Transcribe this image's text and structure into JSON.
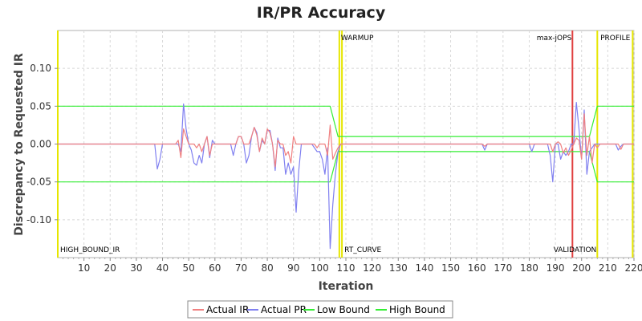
{
  "chart_data": {
    "type": "line",
    "title": "IR/PR Accuracy",
    "xlabel": "Iteration",
    "ylabel": "Discrepancy to Requested IR",
    "xlim": [
      0,
      220
    ],
    "ylim": [
      -0.15,
      0.15
    ],
    "x_ticks": [
      10,
      20,
      30,
      40,
      50,
      60,
      70,
      80,
      90,
      100,
      110,
      120,
      130,
      140,
      150,
      160,
      170,
      180,
      190,
      200,
      210,
      220
    ],
    "y_ticks": [
      0.1,
      0.05,
      0.0,
      -0.05,
      -0.1
    ],
    "y_tick_labels": [
      "0.10",
      "0.05",
      "0.00",
      "-0.05",
      "-0.10"
    ],
    "grid": true,
    "legend_position": "bottom",
    "markers": [
      {
        "label": "HIGH_BOUND_IR",
        "x": 0,
        "color": "#e6e600",
        "label_pos": "bottom"
      },
      {
        "label": "WARMUP",
        "x": 107.5,
        "color": "#e6e600",
        "label_pos": "top"
      },
      {
        "label": "RT_CURVE",
        "x": 108.5,
        "color": "#e6e600",
        "label_pos": "bottom"
      },
      {
        "label": "max-jOPS",
        "x": 196.5,
        "color": "#e04040",
        "label_pos": "top"
      },
      {
        "label": "VALIDATION",
        "x": 206,
        "color": "#e6e600",
        "label_pos": "bottom"
      },
      {
        "label": "PROFILE",
        "x": 219.5,
        "color": "#e6e600",
        "label_pos": "top"
      }
    ],
    "series": [
      {
        "name": "Actual IR",
        "color": "#f08080",
        "points": [
          [
            0,
            0
          ],
          [
            37,
            0
          ],
          [
            38,
            0
          ],
          [
            40,
            0
          ],
          [
            45,
            0
          ],
          [
            46,
            0.005
          ],
          [
            47,
            -0.018
          ],
          [
            48,
            0.02
          ],
          [
            49,
            0.01
          ],
          [
            50,
            0
          ],
          [
            52,
            0
          ],
          [
            53,
            -0.005
          ],
          [
            54,
            0
          ],
          [
            55,
            -0.01
          ],
          [
            56,
            0
          ],
          [
            57,
            0.01
          ],
          [
            58,
            -0.015
          ],
          [
            59,
            0
          ],
          [
            60,
            0
          ],
          [
            68,
            0
          ],
          [
            69,
            0.01
          ],
          [
            70,
            0.01
          ],
          [
            71,
            0
          ],
          [
            72,
            0
          ],
          [
            73,
            0
          ],
          [
            74,
            0.01
          ],
          [
            75,
            0.022
          ],
          [
            76,
            0.012
          ],
          [
            77,
            -0.01
          ],
          [
            78,
            0.008
          ],
          [
            79,
            0
          ],
          [
            80,
            0.02
          ],
          [
            81,
            0.015
          ],
          [
            82,
            0
          ],
          [
            83,
            -0.03
          ],
          [
            84,
            0.005
          ],
          [
            85,
            0
          ],
          [
            86,
            0
          ],
          [
            87,
            -0.015
          ],
          [
            88,
            -0.01
          ],
          [
            89,
            -0.025
          ],
          [
            90,
            0.01
          ],
          [
            91,
            0
          ],
          [
            92,
            0
          ],
          [
            95,
            0
          ],
          [
            96,
            0
          ],
          [
            97,
            0
          ],
          [
            98,
            0
          ],
          [
            99,
            -0.005
          ],
          [
            100,
            0
          ],
          [
            101,
            0
          ],
          [
            102,
            0
          ],
          [
            103,
            -0.015
          ],
          [
            104,
            0.025
          ],
          [
            105,
            -0.02
          ],
          [
            106,
            -0.012
          ],
          [
            107,
            -0.005
          ],
          [
            108,
            0
          ],
          [
            115,
            0
          ],
          [
            160,
            0
          ],
          [
            162,
            0
          ],
          [
            163,
            -0.003
          ],
          [
            164,
            0
          ],
          [
            175,
            0
          ],
          [
            180,
            0
          ],
          [
            185,
            0
          ],
          [
            188,
            0
          ],
          [
            189,
            -0.01
          ],
          [
            190,
            0
          ],
          [
            191,
            0.003
          ],
          [
            192,
            0
          ],
          [
            193,
            -0.012
          ],
          [
            194,
            -0.005
          ],
          [
            195,
            -0.015
          ],
          [
            196,
            -0.008
          ],
          [
            197,
            0
          ],
          [
            198,
            0.008
          ],
          [
            199,
            0.005
          ],
          [
            200,
            -0.02
          ],
          [
            201,
            0.04
          ],
          [
            202,
            -0.015
          ],
          [
            203,
            0.01
          ],
          [
            204,
            -0.025
          ],
          [
            205,
            0
          ],
          [
            206,
            -0.005
          ],
          [
            207,
            0
          ],
          [
            212,
            0
          ],
          [
            214,
            0
          ],
          [
            215,
            -0.007
          ],
          [
            216,
            0
          ],
          [
            218,
            0
          ],
          [
            220,
            0
          ]
        ]
      },
      {
        "name": "Actual PR",
        "color": "#8080f0",
        "points": [
          [
            0,
            0
          ],
          [
            36,
            0
          ],
          [
            37,
            0
          ],
          [
            38,
            -0.033
          ],
          [
            39,
            -0.02
          ],
          [
            40,
            0
          ],
          [
            44,
            0
          ],
          [
            45,
            0
          ],
          [
            46,
            0
          ],
          [
            47,
            -0.01
          ],
          [
            48,
            0.053
          ],
          [
            49,
            0.02
          ],
          [
            50,
            0
          ],
          [
            51,
            -0.008
          ],
          [
            52,
            -0.025
          ],
          [
            53,
            -0.028
          ],
          [
            54,
            -0.015
          ],
          [
            55,
            -0.025
          ],
          [
            56,
            0
          ],
          [
            57,
            0.01
          ],
          [
            58,
            -0.018
          ],
          [
            59,
            0.005
          ],
          [
            60,
            0
          ],
          [
            66,
            0
          ],
          [
            67,
            -0.015
          ],
          [
            68,
            0
          ],
          [
            69,
            0.01
          ],
          [
            70,
            0.01
          ],
          [
            71,
            0
          ],
          [
            72,
            -0.025
          ],
          [
            73,
            -0.015
          ],
          [
            74,
            0.01
          ],
          [
            75,
            0.022
          ],
          [
            76,
            0.015
          ],
          [
            77,
            -0.01
          ],
          [
            78,
            0.005
          ],
          [
            79,
            0
          ],
          [
            80,
            0.018
          ],
          [
            81,
            0.018
          ],
          [
            82,
            0
          ],
          [
            83,
            -0.035
          ],
          [
            84,
            0.008
          ],
          [
            85,
            -0.005
          ],
          [
            86,
            -0.005
          ],
          [
            87,
            -0.04
          ],
          [
            88,
            -0.025
          ],
          [
            89,
            -0.04
          ],
          [
            90,
            -0.03
          ],
          [
            91,
            -0.09
          ],
          [
            92,
            -0.035
          ],
          [
            93,
            0
          ],
          [
            94,
            0
          ],
          [
            95,
            0
          ],
          [
            97,
            0
          ],
          [
            99,
            -0.01
          ],
          [
            100,
            -0.01
          ],
          [
            101,
            -0.02
          ],
          [
            102,
            -0.04
          ],
          [
            103,
            -0.005
          ],
          [
            104,
            -0.138
          ],
          [
            105,
            -0.08
          ],
          [
            106,
            -0.04
          ],
          [
            107,
            -0.01
          ],
          [
            108,
            0
          ],
          [
            115,
            0
          ],
          [
            160,
            0
          ],
          [
            162,
            0
          ],
          [
            163,
            -0.008
          ],
          [
            164,
            0
          ],
          [
            175,
            0
          ],
          [
            180,
            0
          ],
          [
            181,
            -0.01
          ],
          [
            182,
            0
          ],
          [
            187,
            0
          ],
          [
            188,
            -0.015
          ],
          [
            189,
            -0.05
          ],
          [
            190,
            0
          ],
          [
            191,
            0
          ],
          [
            192,
            -0.02
          ],
          [
            193,
            -0.01
          ],
          [
            194,
            -0.015
          ],
          [
            195,
            -0.01
          ],
          [
            196,
            0
          ],
          [
            197,
            0
          ],
          [
            198,
            0.055
          ],
          [
            199,
            0.02
          ],
          [
            200,
            -0.02
          ],
          [
            201,
            0.045
          ],
          [
            202,
            -0.04
          ],
          [
            203,
            -0.01
          ],
          [
            204,
            -0.005
          ],
          [
            205,
            0
          ],
          [
            206,
            0
          ],
          [
            208,
            0
          ],
          [
            210,
            0
          ],
          [
            213,
            0
          ],
          [
            214,
            -0.008
          ],
          [
            215,
            -0.003
          ],
          [
            216,
            0
          ],
          [
            220,
            0
          ]
        ]
      },
      {
        "name": "Low Bound",
        "color": "#33ee33",
        "points": [
          [
            0,
            -0.05
          ],
          [
            104,
            -0.05
          ],
          [
            107,
            -0.01
          ],
          [
            108,
            -0.01
          ],
          [
            200,
            -0.01
          ],
          [
            203,
            -0.01
          ],
          [
            206,
            -0.05
          ],
          [
            220,
            -0.05
          ]
        ]
      },
      {
        "name": "High Bound",
        "color": "#33ee33",
        "points": [
          [
            0,
            0.05
          ],
          [
            104,
            0.05
          ],
          [
            107,
            0.01
          ],
          [
            108,
            0.01
          ],
          [
            200,
            0.01
          ],
          [
            203,
            0.01
          ],
          [
            206,
            0.05
          ],
          [
            220,
            0.05
          ]
        ]
      }
    ]
  }
}
